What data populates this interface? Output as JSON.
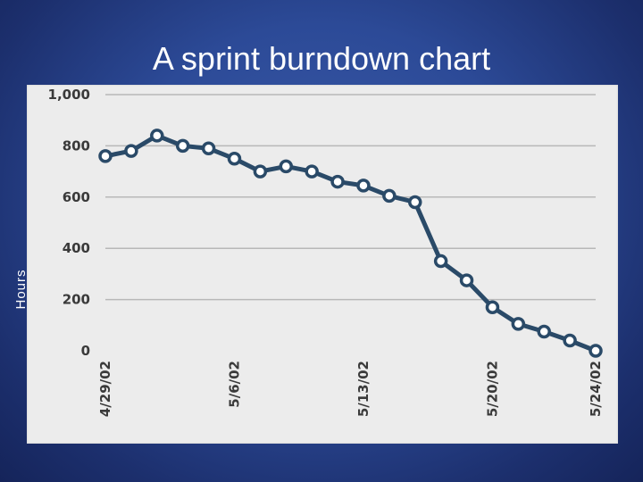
{
  "slide": {
    "title": "A sprint burndown chart"
  },
  "colors": {
    "background": "#2c4a97",
    "panel": "#ececec",
    "line": "#2a4a68",
    "marker_fill": "#ffffff",
    "grid": "#b8b8b8"
  },
  "chart_data": {
    "type": "line",
    "title": "",
    "xlabel": "",
    "ylabel": "Hours",
    "ylim": [
      0,
      1000
    ],
    "yticks": [
      0,
      200,
      400,
      600,
      800,
      1000
    ],
    "ytick_labels": [
      "0",
      "200",
      "400",
      "600",
      "800",
      "1,000"
    ],
    "grid": true,
    "x": [
      "4/29/02",
      "4/30/02",
      "5/1/02",
      "5/2/02",
      "5/3/02",
      "5/6/02",
      "5/7/02",
      "5/8/02",
      "5/9/02",
      "5/10/02",
      "5/13/02",
      "5/14/02",
      "5/15/02",
      "5/16/02",
      "5/17/02",
      "5/20/02",
      "5/21/02",
      "5/22/02",
      "5/23/02",
      "5/24/02"
    ],
    "xtick_labels_shown": [
      "4/29/02",
      "5/6/02",
      "5/13/02",
      "5/20/02",
      "5/24/02"
    ],
    "series": [
      {
        "values": [
          760,
          780,
          840,
          800,
          790,
          750,
          700,
          720,
          700,
          660,
          645,
          605,
          580,
          350,
          275,
          170,
          105,
          75,
          40,
          0
        ]
      }
    ]
  }
}
